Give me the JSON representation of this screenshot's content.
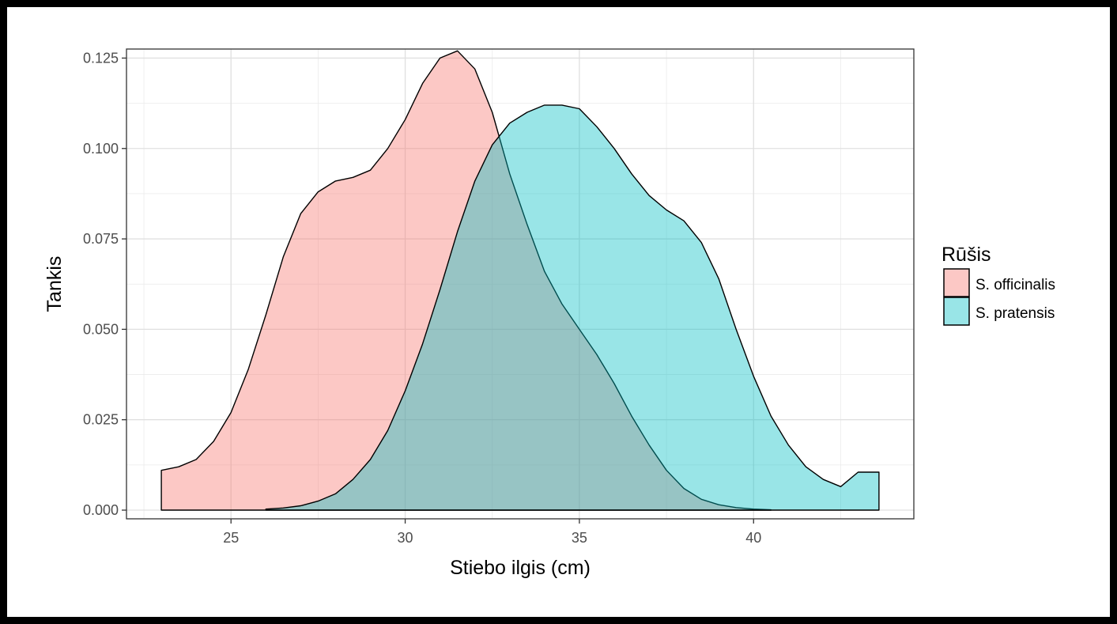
{
  "chart_data": {
    "type": "area",
    "subtype": "density",
    "xlabel": "Stiebo ilgis (cm)",
    "ylabel": "Tankis",
    "xlim": [
      22.0,
      44.6
    ],
    "ylim": [
      -0.0024,
      0.1275
    ],
    "x_ticks": [
      25,
      30,
      35,
      40
    ],
    "x_tick_labels": [
      "25",
      "30",
      "35",
      "40"
    ],
    "y_ticks": [
      0.0,
      0.025,
      0.05,
      0.075,
      0.1,
      0.125
    ],
    "y_tick_labels": [
      "0.000",
      "0.025",
      "0.050",
      "0.075",
      "0.100",
      "0.125"
    ],
    "grid": true,
    "legend": {
      "title": "Rūšis",
      "position": "right",
      "entries": [
        "S. officinalis",
        "S. pratensis"
      ]
    },
    "series": [
      {
        "name": "S. officinalis",
        "color": "#F8766D",
        "x": [
          23.0,
          23.5,
          24.0,
          24.5,
          25.0,
          25.5,
          26.0,
          26.5,
          27.0,
          27.5,
          28.0,
          28.5,
          29.0,
          29.5,
          30.0,
          30.5,
          31.0,
          31.5,
          32.0,
          32.5,
          33.0,
          33.5,
          34.0,
          34.5,
          35.0,
          35.5,
          36.0,
          36.5,
          37.0,
          37.5,
          38.0,
          38.5,
          39.0,
          39.5,
          40.0,
          40.5
        ],
        "y": [
          0.011,
          0.012,
          0.014,
          0.019,
          0.027,
          0.039,
          0.054,
          0.07,
          0.082,
          0.088,
          0.091,
          0.092,
          0.094,
          0.1,
          0.108,
          0.118,
          0.125,
          0.127,
          0.122,
          0.11,
          0.093,
          0.079,
          0.066,
          0.057,
          0.05,
          0.043,
          0.035,
          0.026,
          0.018,
          0.011,
          0.006,
          0.003,
          0.0015,
          0.0007,
          0.0003,
          0.0001
        ]
      },
      {
        "name": "S. pratensis",
        "color": "#00BFC4",
        "x": [
          26.0,
          26.5,
          27.0,
          27.5,
          28.0,
          28.5,
          29.0,
          29.5,
          30.0,
          30.5,
          31.0,
          31.5,
          32.0,
          32.5,
          33.0,
          33.5,
          34.0,
          34.5,
          35.0,
          35.5,
          36.0,
          36.5,
          37.0,
          37.5,
          38.0,
          38.5,
          39.0,
          39.5,
          40.0,
          40.5,
          41.0,
          41.5,
          42.0,
          42.5,
          43.0,
          43.6
        ],
        "y": [
          0.0003,
          0.0006,
          0.0012,
          0.0025,
          0.0045,
          0.0085,
          0.014,
          0.022,
          0.033,
          0.046,
          0.061,
          0.077,
          0.091,
          0.101,
          0.107,
          0.11,
          0.112,
          0.112,
          0.111,
          0.106,
          0.1,
          0.093,
          0.087,
          0.083,
          0.08,
          0.074,
          0.064,
          0.05,
          0.037,
          0.026,
          0.018,
          0.012,
          0.0085,
          0.0065,
          0.0105,
          0.0105
        ]
      }
    ]
  }
}
